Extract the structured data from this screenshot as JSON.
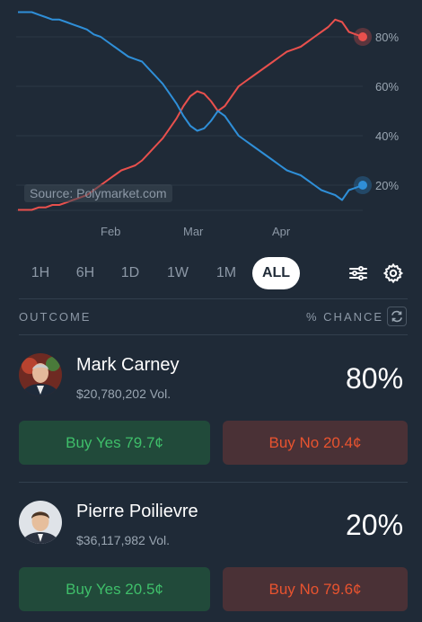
{
  "chart_data": {
    "type": "line",
    "x_labels": [
      "Feb",
      "Mar",
      "Apr"
    ],
    "y_ticks": [
      "80%",
      "60%",
      "40%",
      "20%"
    ],
    "ylim": [
      0,
      100
    ],
    "source": "Source: Polymarket.com",
    "series": [
      {
        "name": "Mark Carney",
        "color": "#e8504d",
        "values": [
          10,
          10,
          10,
          11,
          11,
          12,
          12,
          13,
          14,
          15,
          16,
          18,
          20,
          22,
          24,
          26,
          27,
          28,
          30,
          33,
          36,
          39,
          43,
          47,
          52,
          56,
          58,
          57,
          54,
          50,
          52,
          56,
          60,
          62,
          64,
          66,
          68,
          70,
          72,
          74,
          75,
          76,
          78,
          80,
          82,
          84,
          87,
          86,
          82,
          81,
          80
        ]
      },
      {
        "name": "Pierre Poilievre",
        "color": "#2f8fd8",
        "values": [
          90,
          90,
          90,
          89,
          88,
          87,
          87,
          86,
          85,
          84,
          83,
          81,
          80,
          78,
          76,
          74,
          72,
          71,
          70,
          67,
          64,
          61,
          57,
          53,
          48,
          44,
          42,
          43,
          46,
          50,
          48,
          44,
          40,
          38,
          36,
          34,
          32,
          30,
          28,
          26,
          25,
          24,
          22,
          20,
          18,
          17,
          16,
          14,
          18,
          19,
          20
        ]
      }
    ]
  },
  "timebar": {
    "options": [
      "1H",
      "6H",
      "1D",
      "1W",
      "1M",
      "ALL"
    ],
    "selected": "ALL",
    "filter_icon": "sliders-icon",
    "settings_icon": "gear-icon"
  },
  "table_header": {
    "outcome": "OUTCOME",
    "chance": "% CHANCE",
    "refresh_icon": "refresh-icon"
  },
  "outcomes": [
    {
      "name": "Mark Carney",
      "volume": "$20,780,202 Vol.",
      "chance": "80%",
      "buy_yes": "Buy Yes 79.7¢",
      "buy_no": "Buy No 20.4¢"
    },
    {
      "name": "Pierre Poilievre",
      "volume": "$36,117,982 Vol.",
      "chance": "20%",
      "buy_yes": "Buy Yes 20.5¢",
      "buy_no": "Buy No 79.6¢"
    }
  ]
}
